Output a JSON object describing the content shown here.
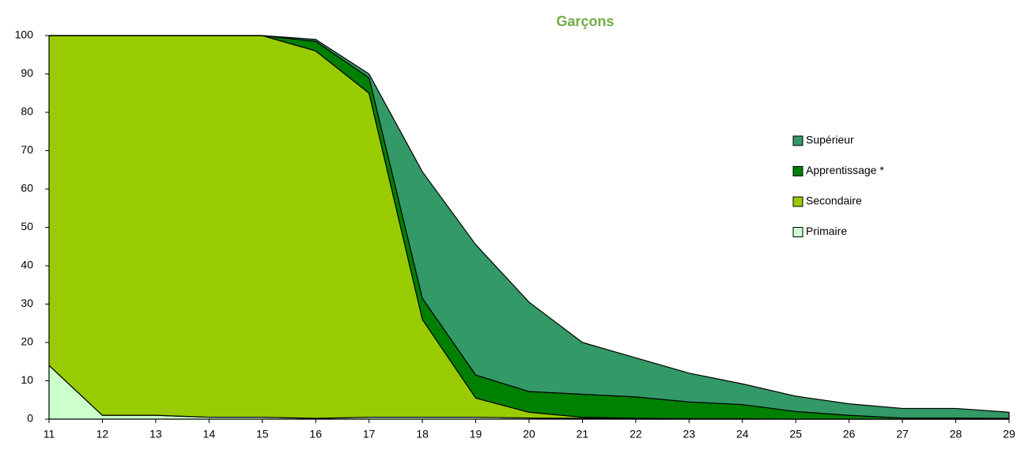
{
  "chart_data": {
    "type": "stacked_area",
    "title": "Garçons",
    "categories": [
      "11",
      "12",
      "13",
      "14",
      "15",
      "16",
      "17",
      "18",
      "19",
      "20",
      "21",
      "22",
      "23",
      "24",
      "25",
      "26",
      "27",
      "28",
      "29"
    ],
    "series": [
      {
        "name": "Primaire",
        "color": "#ccffcc",
        "values": [
          14,
          1,
          1,
          0.5,
          0.5,
          0.2,
          0.5,
          0.5,
          0.5,
          0.3,
          0.2,
          0,
          0,
          0,
          0,
          0,
          0,
          0,
          0
        ]
      },
      {
        "name": "Secondaire",
        "color": "#99cc00",
        "values": [
          86,
          99,
          99,
          99.5,
          99.5,
          95.8,
          84.5,
          25.5,
          5,
          1.5,
          0.3,
          0.2,
          0.1,
          0.1,
          0,
          0,
          0,
          0,
          0
        ]
      },
      {
        "name": "Apprentissage *",
        "color": "#008000",
        "values": [
          0,
          0,
          0,
          0,
          0,
          2.5,
          4,
          5.5,
          6,
          5.4,
          6,
          5.6,
          4.4,
          3.7,
          2,
          1,
          0.3,
          0.3,
          0.2
        ]
      },
      {
        "name": "Supérieur",
        "color": "#339966",
        "values": [
          0,
          0,
          0,
          0,
          0,
          0.5,
          1,
          33,
          34,
          23.3,
          13.5,
          10.2,
          7.5,
          5.4,
          4,
          3,
          2.5,
          2.5,
          1.6
        ]
      }
    ],
    "ylim": [
      0,
      100
    ],
    "yticks": [
      0,
      10,
      20,
      30,
      40,
      50,
      60,
      70,
      80,
      90,
      100
    ],
    "grid": false,
    "legend": "right"
  }
}
